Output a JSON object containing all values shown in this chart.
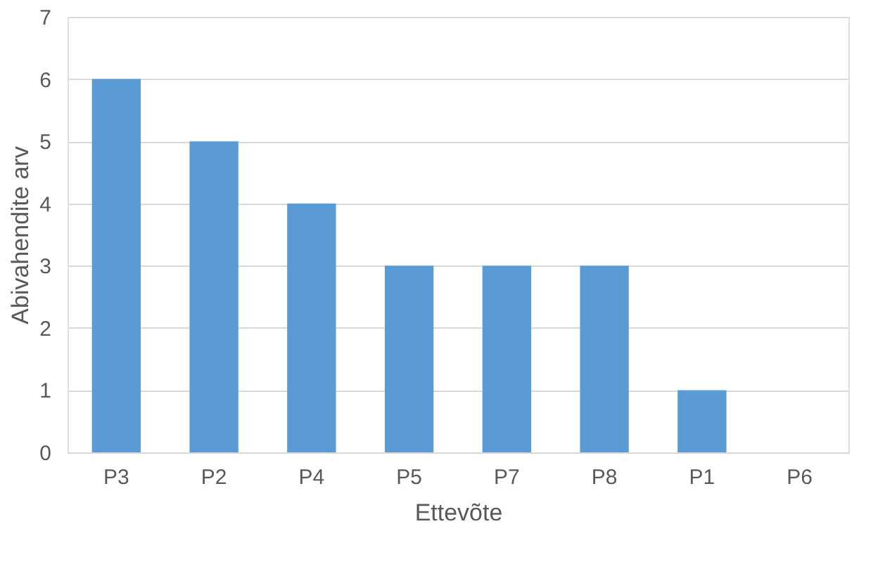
{
  "chart_data": {
    "type": "bar",
    "xlabel": "Ettevõte",
    "ylabel": "Abivahendite arv",
    "categories": [
      "P3",
      "P2",
      "P4",
      "P5",
      "P7",
      "P8",
      "P1",
      "P6"
    ],
    "values": [
      6,
      5,
      4,
      3,
      3,
      3,
      1,
      0
    ],
    "color": "#5b9bd5",
    "ylim": [
      0,
      7
    ],
    "yticks": [
      0,
      1,
      2,
      3,
      4,
      5,
      6,
      7
    ],
    "grid": "y"
  }
}
